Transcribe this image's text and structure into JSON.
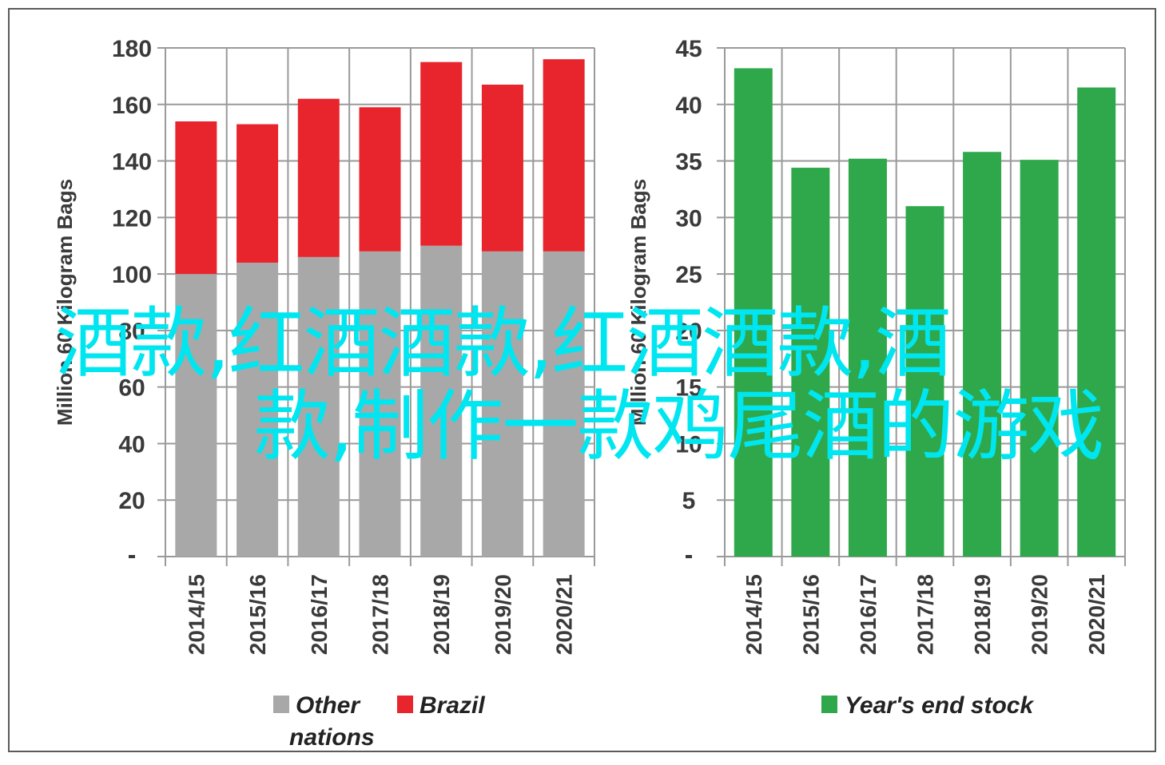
{
  "overlay": {
    "line1": "酒款,红酒酒款,红酒酒款,酒",
    "line2": "款,制作一款鸡尾酒的游戏"
  },
  "colors": {
    "other": "#a8a8a8",
    "brazil": "#e8242c",
    "stock": "#2ea84a",
    "grid": "#9a9a9a",
    "overlay": "#00e6f0"
  },
  "chart_data": [
    {
      "type": "bar",
      "stacked": true,
      "ylabel": "Million 60 Kilogram Bags",
      "ylim": [
        0,
        180
      ],
      "yticks": [
        0,
        20,
        40,
        60,
        80,
        100,
        120,
        140,
        160,
        180
      ],
      "ytick_labels": [
        "",
        "20",
        "40",
        "60",
        "80",
        "100",
        "120",
        "140",
        "160",
        "180"
      ],
      "grid": true,
      "legend": "bottom",
      "categories": [
        "2014/15",
        "2015/16",
        "2016/17",
        "2017/18",
        "2018/19",
        "2019/20",
        "2020/21"
      ],
      "series": [
        {
          "name": "Other nations",
          "legend_line1": "Other",
          "legend_line2": "nations",
          "color": "#a8a8a8",
          "values": [
            100,
            104,
            106,
            108,
            110,
            108,
            108
          ]
        },
        {
          "name": "Brazil",
          "color": "#e8242c",
          "values": [
            54,
            49,
            56,
            51,
            65,
            59,
            68
          ]
        }
      ]
    },
    {
      "type": "bar",
      "ylabel": "Million 60 Kilogram Bags",
      "ylim": [
        0,
        45
      ],
      "yticks": [
        0,
        5,
        10,
        15,
        20,
        25,
        30,
        35,
        40,
        45
      ],
      "ytick_labels": [
        "",
        "5",
        "10",
        "15",
        "20",
        "25",
        "30",
        "35",
        "40",
        "45"
      ],
      "grid": true,
      "legend": "bottom",
      "categories": [
        "2014/15",
        "2015/16",
        "2016/17",
        "2017/18",
        "2018/19",
        "2019/20",
        "2020/21"
      ],
      "series": [
        {
          "name": "Year's end stock",
          "color": "#2ea84a",
          "values": [
            43.2,
            34.4,
            35.2,
            31.0,
            35.8,
            35.1,
            41.5
          ]
        }
      ]
    }
  ]
}
